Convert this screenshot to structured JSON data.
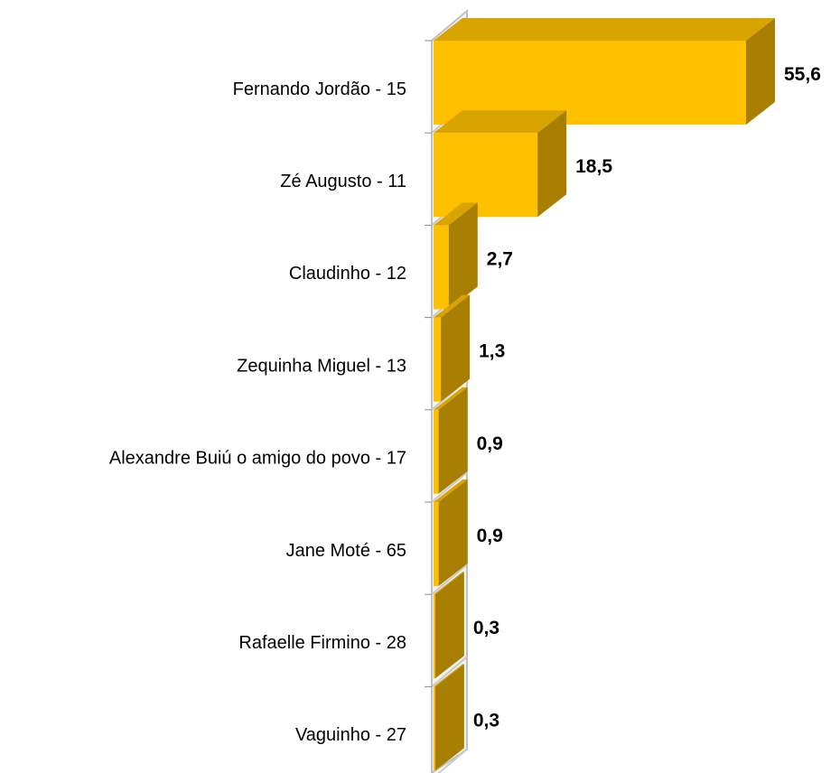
{
  "chart_data": {
    "type": "bar3d",
    "orientation": "horizontal",
    "categories": [
      "Fernando Jordão - 15",
      "Zé Augusto - 11",
      "Claudinho - 12",
      "Zequinha Miguel - 13",
      "Alexandre Buiú o amigo do povo - 17",
      "Jane Moté - 65",
      "Rafaelle Firmino - 28",
      "Vaguinho - 27"
    ],
    "values": [
      55.6,
      18.5,
      2.7,
      1.3,
      0.9,
      0.9,
      0.3,
      0.3
    ],
    "value_labels": [
      "55,6",
      "18,5",
      "2,7",
      "1,3",
      "0,9",
      "0,9",
      "0,3",
      "0,3"
    ],
    "color": "#ffc000"
  }
}
